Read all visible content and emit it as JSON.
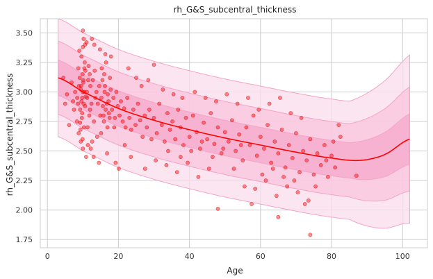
{
  "chart_data": {
    "type": "scatter",
    "title": "rh_G&S_subcentral_thickness",
    "xlabel": "Age",
    "ylabel": "rh_G&S_subcentral_thickness",
    "xlim": [
      -2,
      107
    ],
    "ylim": [
      1.68,
      3.62
    ],
    "xticks": [
      0,
      20,
      40,
      60,
      80,
      100
    ],
    "yticks": [
      1.75,
      2.0,
      2.25,
      2.5,
      2.75,
      3.0,
      3.25,
      3.5
    ],
    "xtick_labels": [
      "0",
      "20",
      "40",
      "60",
      "80",
      "100"
    ],
    "ytick_labels": [
      "1.75",
      "2.00",
      "2.25",
      "2.50",
      "2.75",
      "3.00",
      "3.25",
      "3.50"
    ],
    "grid": true,
    "colors": {
      "points": "#ff0000",
      "trend": "#ff0000",
      "band_outer": "#fadcec",
      "band_middle": "#f9c4de",
      "band_inner": "#f5a8cc",
      "band_edge": "#f4a3c6",
      "grid": "#cccccc",
      "axes_frame": "#cccccc"
    },
    "trend_x": [
      3,
      10,
      20,
      30,
      40,
      50,
      60,
      70,
      80,
      88,
      95,
      102
    ],
    "trend_y": [
      3.12,
      3.0,
      2.86,
      2.76,
      2.68,
      2.61,
      2.55,
      2.49,
      2.44,
      2.42,
      2.47,
      2.6
    ],
    "band_offsets": [
      0.15,
      0.31,
      0.5
    ],
    "annotated_points": [
      {
        "x": 10,
        "y": 3.52
      },
      {
        "x": 48,
        "y": 2.01
      },
      {
        "x": 65,
        "y": 1.94
      },
      {
        "x": 74,
        "y": 1.79
      },
      {
        "x": 30,
        "y": 3.23
      },
      {
        "x": 87,
        "y": 2.29
      },
      {
        "x": 82,
        "y": 2.72
      }
    ],
    "series": [
      {
        "name": "",
        "points": [
          [
            9.5,
            3.05
          ],
          [
            9.8,
            2.95
          ],
          [
            10.1,
            3.1
          ],
          [
            9.2,
            2.85
          ],
          [
            10.4,
            3.2
          ],
          [
            9.7,
            2.78
          ],
          [
            10.0,
            3.0
          ],
          [
            9.9,
            3.15
          ],
          [
            10.2,
            2.9
          ],
          [
            9.6,
            3.3
          ],
          [
            10.3,
            2.7
          ],
          [
            9.4,
            3.02
          ],
          [
            10.6,
            2.88
          ],
          [
            9.1,
            3.12
          ],
          [
            10.8,
            2.96
          ],
          [
            9.3,
            2.68
          ],
          [
            10.5,
            3.25
          ],
          [
            9.8,
            2.82
          ],
          [
            10.1,
            3.08
          ],
          [
            9.6,
            2.92
          ],
          [
            10.7,
            3.18
          ],
          [
            9.2,
            2.74
          ],
          [
            10.0,
            3.38
          ],
          [
            9.9,
            2.6
          ],
          [
            10.4,
            3.0
          ],
          [
            11.2,
            2.95
          ],
          [
            11.5,
            3.1
          ],
          [
            11.8,
            2.8
          ],
          [
            12.1,
            3.05
          ],
          [
            11.3,
            2.7
          ],
          [
            11.6,
            3.22
          ],
          [
            12.4,
            2.9
          ],
          [
            11.1,
            3.0
          ],
          [
            12.0,
            2.85
          ],
          [
            11.9,
            3.15
          ],
          [
            8.6,
            2.9
          ],
          [
            8.9,
            3.05
          ],
          [
            8.3,
            2.75
          ],
          [
            8.7,
            3.2
          ],
          [
            8.4,
            2.95
          ],
          [
            7.8,
            3.0
          ],
          [
            7.5,
            2.85
          ],
          [
            6.8,
            3.08
          ],
          [
            7.2,
            2.92
          ],
          [
            5.5,
            2.98
          ],
          [
            4.5,
            3.12
          ],
          [
            6.1,
            2.72
          ],
          [
            5.0,
            2.9
          ],
          [
            15.2,
            2.95
          ],
          [
            15.5,
            3.1
          ],
          [
            15.8,
            2.8
          ],
          [
            16.1,
            3.0
          ],
          [
            16.4,
            2.85
          ],
          [
            15.3,
            3.2
          ],
          [
            16.7,
            2.9
          ],
          [
            15.9,
            2.75
          ],
          [
            16.2,
            3.05
          ],
          [
            15.6,
            2.88
          ],
          [
            17.0,
            2.98
          ],
          [
            17.3,
            2.82
          ],
          [
            17.6,
            3.12
          ],
          [
            16.9,
            2.7
          ],
          [
            17.2,
            2.92
          ],
          [
            17.8,
            3.02
          ],
          [
            15.1,
            2.65
          ],
          [
            16.5,
            3.25
          ],
          [
            17.5,
            2.78
          ],
          [
            16.0,
            3.15
          ],
          [
            14.2,
            2.9
          ],
          [
            14.6,
            3.05
          ],
          [
            14.9,
            2.8
          ],
          [
            13.5,
            2.95
          ],
          [
            13.8,
            3.0
          ],
          [
            13.1,
            2.75
          ],
          [
            12.8,
            3.1
          ],
          [
            14.0,
            2.62
          ],
          [
            13.3,
            3.18
          ],
          [
            12.6,
            2.58
          ],
          [
            18.2,
            2.85
          ],
          [
            18.6,
            2.95
          ],
          [
            19.0,
            2.78
          ],
          [
            19.4,
            3.0
          ],
          [
            18.8,
            2.7
          ],
          [
            19.8,
            2.88
          ],
          [
            20.3,
            2.8
          ],
          [
            20.7,
            2.92
          ],
          [
            21.2,
            2.75
          ],
          [
            21.6,
            2.86
          ],
          [
            22.0,
            2.7
          ],
          [
            22.5,
            2.95
          ],
          [
            23.1,
            2.78
          ],
          [
            23.6,
            2.68
          ],
          [
            24.2,
            2.85
          ],
          [
            24.8,
            2.72
          ],
          [
            25.5,
            2.9
          ],
          [
            26.1,
            2.76
          ],
          [
            26.8,
            2.62
          ],
          [
            27.4,
            2.8
          ],
          [
            28.0,
            2.7
          ],
          [
            28.7,
            2.85
          ],
          [
            29.3,
            2.6
          ],
          [
            30.0,
            2.78
          ],
          [
            30.8,
            2.65
          ],
          [
            31.5,
            2.9
          ],
          [
            32.2,
            2.72
          ],
          [
            33.0,
            2.58
          ],
          [
            33.8,
            2.82
          ],
          [
            34.5,
            2.68
          ],
          [
            35.2,
            2.75
          ],
          [
            36.0,
            2.6
          ],
          [
            36.8,
            2.85
          ],
          [
            37.5,
            2.7
          ],
          [
            38.3,
            2.55
          ],
          [
            39.0,
            2.78
          ],
          [
            40.0,
            2.62
          ],
          [
            41.0,
            2.8
          ],
          [
            42.0,
            2.66
          ],
          [
            43.0,
            2.52
          ],
          [
            44.0,
            2.74
          ],
          [
            45.0,
            2.6
          ],
          [
            46.0,
            2.82
          ],
          [
            47.0,
            2.56
          ],
          [
            48.0,
            2.7
          ],
          [
            49.0,
            2.48
          ],
          [
            50.0,
            2.66
          ],
          [
            51.0,
            2.58
          ],
          [
            52.0,
            2.76
          ],
          [
            53.0,
            2.5
          ],
          [
            54.0,
            2.64
          ],
          [
            55.0,
            2.42
          ],
          [
            56.0,
            2.7
          ],
          [
            57.0,
            2.55
          ],
          [
            58.0,
            2.8
          ],
          [
            59.0,
            2.46
          ],
          [
            60.0,
            2.62
          ],
          [
            61.0,
            2.52
          ],
          [
            62.0,
            2.72
          ],
          [
            63.0,
            2.4
          ],
          [
            64.0,
            2.58
          ],
          [
            65.0,
            2.48
          ],
          [
            66.0,
            2.68
          ],
          [
            67.0,
            2.36
          ],
          [
            68.0,
            2.55
          ],
          [
            69.0,
            2.44
          ],
          [
            70.0,
            2.65
          ],
          [
            71.0,
            2.32
          ],
          [
            72.0,
            2.5
          ],
          [
            73.0,
            2.42
          ],
          [
            74.0,
            2.6
          ],
          [
            75.0,
            2.3
          ],
          [
            76.0,
            2.48
          ],
          [
            77.0,
            2.38
          ],
          [
            78.0,
            2.55
          ],
          [
            79.0,
            2.28
          ],
          [
            80.0,
            2.46
          ],
          [
            81.0,
            2.36
          ],
          [
            12.2,
            2.52
          ],
          [
            13.0,
            2.45
          ],
          [
            14.5,
            2.4
          ],
          [
            16.8,
            2.48
          ],
          [
            19.2,
            2.4
          ],
          [
            21.8,
            2.55
          ],
          [
            20.1,
            2.35
          ],
          [
            23.5,
            2.45
          ],
          [
            11.0,
            3.42
          ],
          [
            12.5,
            3.45
          ],
          [
            13.2,
            3.4
          ],
          [
            16.3,
            3.32
          ],
          [
            17.9,
            3.3
          ],
          [
            14.8,
            3.36
          ],
          [
            22.8,
            3.2
          ],
          [
            25.0,
            3.12
          ],
          [
            26.5,
            3.05
          ],
          [
            28.4,
            3.1
          ],
          [
            32.5,
            3.02
          ],
          [
            35.5,
            2.98
          ],
          [
            38.0,
            2.95
          ],
          [
            41.5,
            3.0
          ],
          [
            44.5,
            2.95
          ],
          [
            47.5,
            2.92
          ],
          [
            50.5,
            2.98
          ],
          [
            53.5,
            2.9
          ],
          [
            56.5,
            2.95
          ],
          [
            59.5,
            2.85
          ],
          [
            62.5,
            2.9
          ],
          [
            65.5,
            2.95
          ],
          [
            68.5,
            2.82
          ],
          [
            71.5,
            2.78
          ],
          [
            55.5,
            2.2
          ],
          [
            58.5,
            2.18
          ],
          [
            61.5,
            2.25
          ],
          [
            64.5,
            2.12
          ],
          [
            67.5,
            2.2
          ],
          [
            70.5,
            2.15
          ],
          [
            73.5,
            2.08
          ],
          [
            72.5,
            2.05
          ],
          [
            45.5,
            2.35
          ],
          [
            42.5,
            2.28
          ],
          [
            39.5,
            2.4
          ],
          [
            36.5,
            2.32
          ],
          [
            33.5,
            2.38
          ],
          [
            30.5,
            2.42
          ],
          [
            27.5,
            2.35
          ],
          [
            57.5,
            2.05
          ],
          [
            60.5,
            2.3
          ],
          [
            63.5,
            2.35
          ],
          [
            66.5,
            2.28
          ],
          [
            69.5,
            2.25
          ],
          [
            75.5,
            2.2
          ],
          [
            78.5,
            2.42
          ],
          [
            80.5,
            2.58
          ],
          [
            82.5,
            2.62
          ],
          [
            10.0,
            2.52
          ],
          [
            9.4,
            2.58
          ],
          [
            10.9,
            2.45
          ],
          [
            11.4,
            2.55
          ],
          [
            8.8,
            2.65
          ],
          [
            9.0,
            3.35
          ],
          [
            10.2,
            3.45
          ],
          [
            10.6,
            3.4
          ],
          [
            52.5,
            2.35
          ],
          [
            54.5,
            2.55
          ],
          [
            49.5,
            2.52
          ],
          [
            46.5,
            2.45
          ],
          [
            43.5,
            2.58
          ],
          [
            40.5,
            2.5
          ],
          [
            37.5,
            2.45
          ],
          [
            34.0,
            2.5
          ]
        ]
      }
    ]
  }
}
